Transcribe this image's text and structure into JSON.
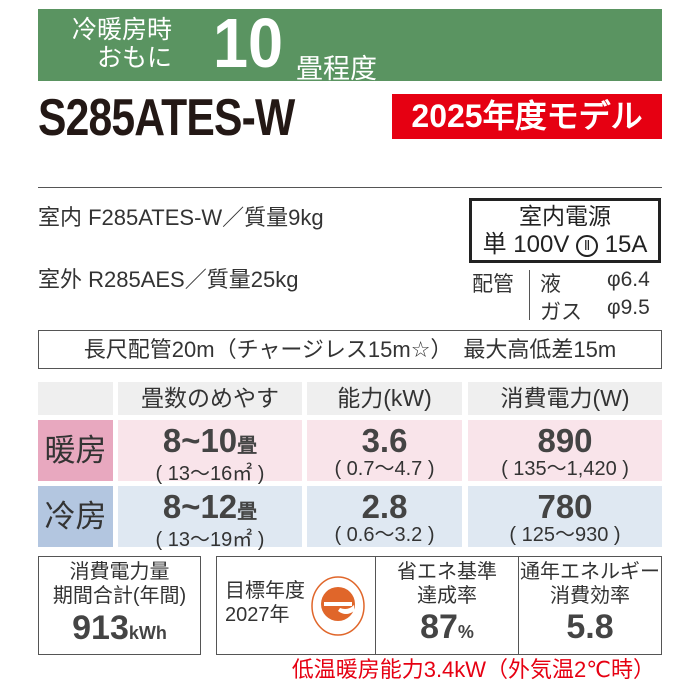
{
  "banner": {
    "line1": "冷暖房時",
    "line2": "おもに",
    "size": "10",
    "unit": "畳程度",
    "color": "#5a9461"
  },
  "model": "S285ATES-W",
  "year_badge": {
    "label": "2025年度モデル",
    "color": "#e60012"
  },
  "indoor": "室内  F285ATES-W／質量9kg",
  "outdoor": "室外  R285AES／質量25kg",
  "power": {
    "title": "室内電源",
    "phase": "単",
    "voltage": "100V",
    "plug_icon": "circle-II-icon",
    "plug": "Ⅱ",
    "amps": "15A"
  },
  "piping": {
    "label": "配管",
    "liquid_label": "液",
    "liquid": "φ6.4",
    "gas_label": "ガス",
    "gas": "φ9.5"
  },
  "long_pipe": "長尺配管20m（チャージレス15m☆）　最大高低差15m",
  "table": {
    "headers": [
      "畳数のめやす",
      "能力(kW)",
      "消費電力(W)"
    ],
    "rows": [
      {
        "label": "暖房",
        "tatami": "8~10",
        "tatami_unit": "畳",
        "area": "( 13〜16㎡ )",
        "capacity": "3.6",
        "capacity_range": "( 0.7〜4.7 )",
        "power": "890",
        "power_range": "( 135〜1,420 )"
      },
      {
        "label": "冷房",
        "tatami": "8~12",
        "tatami_unit": "畳",
        "area": "( 13〜19㎡ )",
        "capacity": "2.8",
        "capacity_range": "( 0.6〜3.2 )",
        "power": "780",
        "power_range": "( 125〜930 )"
      }
    ]
  },
  "annual": {
    "l1": "消費電力量",
    "l2": "期間合計(年間)",
    "value": "913",
    "unit": "kWh"
  },
  "target": {
    "l1": "目標年度",
    "l2": "2027年",
    "logo": "e-mark-icon"
  },
  "achievement": {
    "l1": "省エネ基準",
    "l2": "達成率",
    "value": "87",
    "unit": "%"
  },
  "apf": {
    "l1": "通年エネルギー",
    "l2": "消費効率",
    "value": "5.8"
  },
  "footer": "低温暖房能力3.4kW（外気温2℃時）"
}
